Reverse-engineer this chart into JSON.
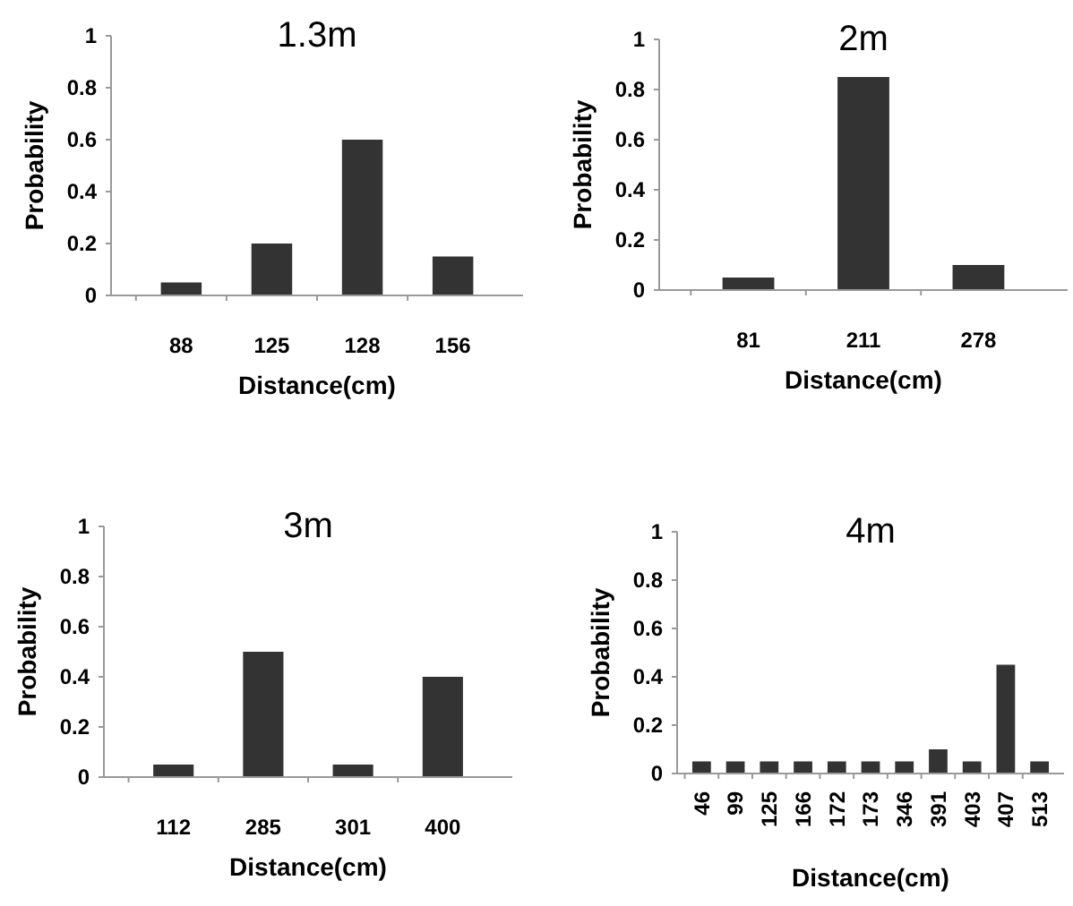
{
  "chart_data": [
    {
      "type": "bar",
      "title": "1.3m",
      "xlabel": "Distance(cm)",
      "ylabel": "Probability",
      "categories": [
        "88",
        "125",
        "128",
        "156"
      ],
      "values": [
        0.05,
        0.2,
        0.6,
        0.15
      ],
      "color": "#333333",
      "ylim": [
        0,
        1
      ],
      "yticks": [
        0,
        0.2,
        0.4,
        0.6,
        0.8,
        1
      ],
      "grid": false
    },
    {
      "type": "bar",
      "title": "2m",
      "xlabel": "Distance(cm)",
      "ylabel": "Probability",
      "categories": [
        "81",
        "211",
        "278"
      ],
      "values": [
        0.05,
        0.85,
        0.1
      ],
      "color": "#333333",
      "ylim": [
        0,
        1
      ],
      "yticks": [
        0,
        0.2,
        0.4,
        0.6,
        0.8,
        1
      ],
      "grid": false
    },
    {
      "type": "bar",
      "title": "3m",
      "xlabel": "Distance(cm)",
      "ylabel": "Probability",
      "categories": [
        "112",
        "285",
        "301",
        "400"
      ],
      "values": [
        0.05,
        0.5,
        0.05,
        0.4
      ],
      "color": "#333333",
      "ylim": [
        0,
        1
      ],
      "yticks": [
        0,
        0.2,
        0.4,
        0.6,
        0.8,
        1
      ],
      "grid": false
    },
    {
      "type": "bar",
      "title": "4m",
      "xlabel": "Distance(cm)",
      "ylabel": "Probability",
      "categories": [
        "46",
        "99",
        "125",
        "166",
        "172",
        "173",
        "346",
        "391",
        "403",
        "407",
        "513"
      ],
      "values": [
        0.05,
        0.05,
        0.05,
        0.05,
        0.05,
        0.05,
        0.05,
        0.1,
        0.05,
        0.45,
        0.05
      ],
      "color": "#333333",
      "ylim": [
        0,
        1
      ],
      "yticks": [
        0,
        0.2,
        0.4,
        0.6,
        0.8,
        1
      ],
      "grid": false
    }
  ]
}
